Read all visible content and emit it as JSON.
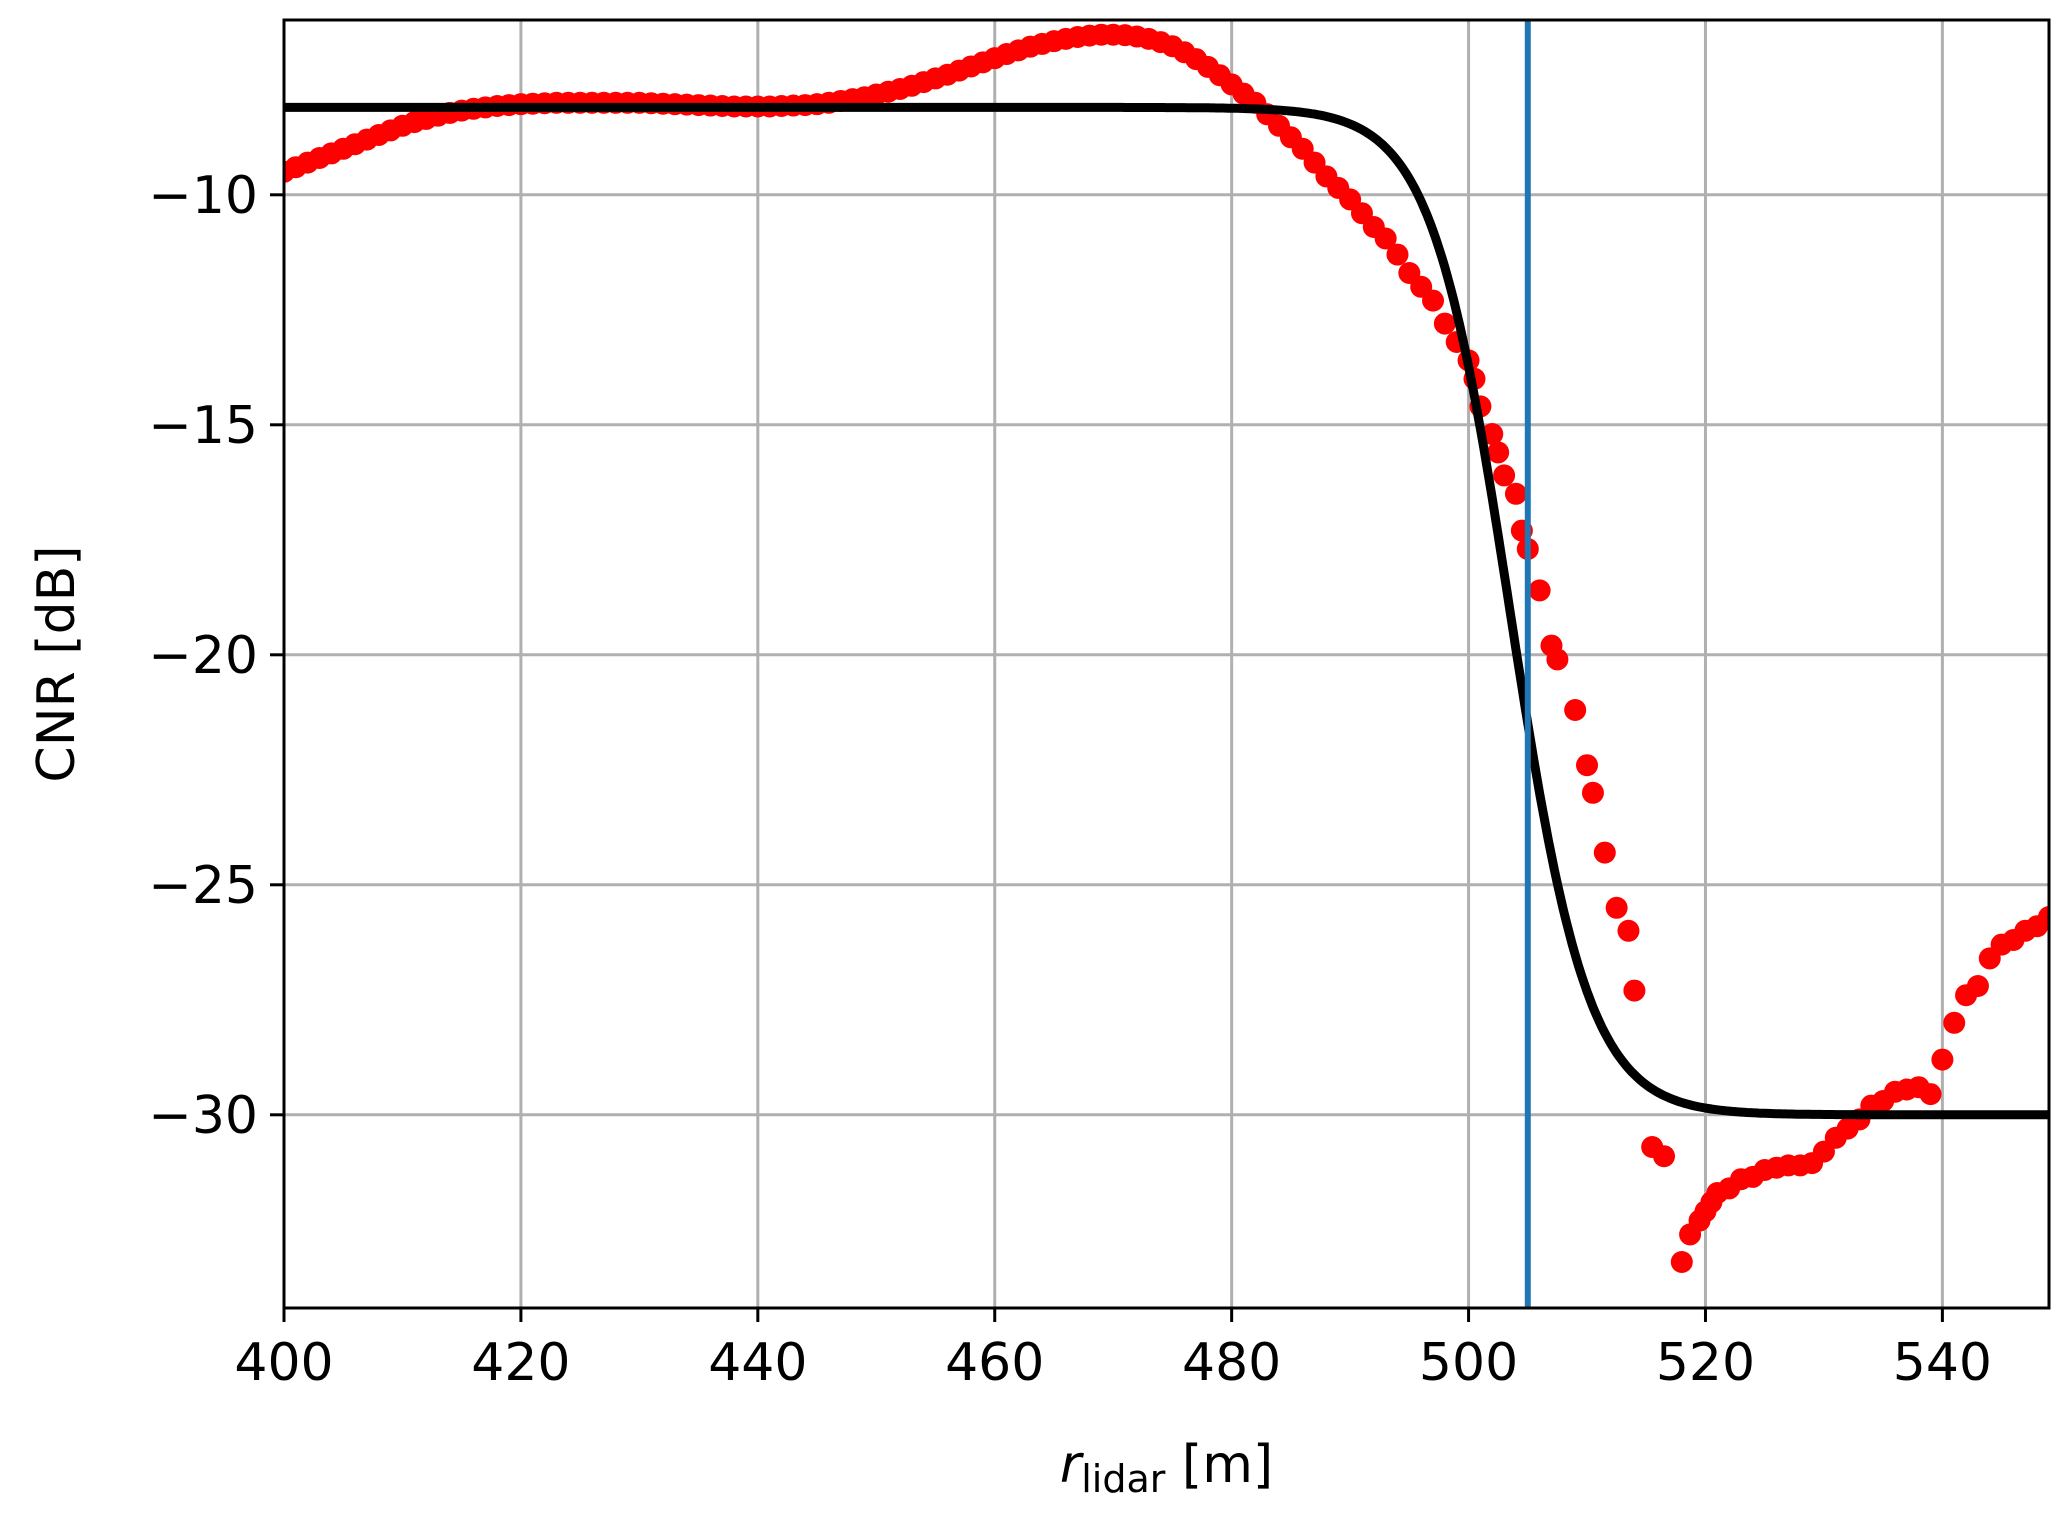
{
  "chart_data": {
    "type": "scatter",
    "xlabel": {
      "var": "r",
      "sub": "lidar",
      "unit": " [m]"
    },
    "ylabel": "CNR [dB]",
    "xlim": [
      400,
      549
    ],
    "ylim": [
      -34.2,
      -6.2
    ],
    "xticks": [
      400,
      420,
      440,
      460,
      480,
      500,
      520,
      540
    ],
    "yticks": [
      -10,
      -15,
      -20,
      -25,
      -30
    ],
    "xtick_labels": [
      "400",
      "420",
      "440",
      "460",
      "480",
      "500",
      "520",
      "540"
    ],
    "ytick_labels": [
      "−10",
      "−15",
      "−20",
      "−25",
      "−30"
    ],
    "grid": true,
    "colors": {
      "points": "#ff0000",
      "fit": "#000000",
      "vline": "#1f77b4",
      "grid": "#b0b0b0"
    },
    "vline_x": 505,
    "fit": {
      "high": -8.1,
      "low": -30.0,
      "center": 503.5,
      "width": 3.3
    },
    "series": [
      {
        "marker": "circle",
        "points": [
          [
            400,
            -9.5
          ],
          [
            401,
            -9.4
          ],
          [
            402,
            -9.3
          ],
          [
            403,
            -9.2
          ],
          [
            404,
            -9.1
          ],
          [
            405,
            -9.0
          ],
          [
            406,
            -8.9
          ],
          [
            407,
            -8.8
          ],
          [
            408,
            -8.7
          ],
          [
            409,
            -8.6
          ],
          [
            410,
            -8.5
          ],
          [
            411,
            -8.42
          ],
          [
            412,
            -8.35
          ],
          [
            413,
            -8.28
          ],
          [
            414,
            -8.22
          ],
          [
            415,
            -8.17
          ],
          [
            416,
            -8.13
          ],
          [
            417,
            -8.1
          ],
          [
            418,
            -8.07
          ],
          [
            419,
            -8.05
          ],
          [
            420,
            -8.03
          ],
          [
            421,
            -8.02
          ],
          [
            422,
            -8.01
          ],
          [
            423,
            -8.0
          ],
          [
            424,
            -8.0
          ],
          [
            425,
            -8.0
          ],
          [
            426,
            -8.0
          ],
          [
            427,
            -8.0
          ],
          [
            428,
            -8.0
          ],
          [
            429,
            -8.0
          ],
          [
            430,
            -8.0
          ],
          [
            431,
            -8.01
          ],
          [
            432,
            -8.02
          ],
          [
            433,
            -8.03
          ],
          [
            434,
            -8.04
          ],
          [
            435,
            -8.05
          ],
          [
            436,
            -8.06
          ],
          [
            437,
            -8.07
          ],
          [
            438,
            -8.08
          ],
          [
            439,
            -8.08
          ],
          [
            440,
            -8.08
          ],
          [
            441,
            -8.08
          ],
          [
            442,
            -8.07
          ],
          [
            443,
            -8.06
          ],
          [
            444,
            -8.05
          ],
          [
            445,
            -8.03
          ],
          [
            446,
            -8.0
          ],
          [
            447,
            -7.96
          ],
          [
            448,
            -7.92
          ],
          [
            449,
            -7.88
          ],
          [
            450,
            -7.82
          ],
          [
            451,
            -7.76
          ],
          [
            452,
            -7.7
          ],
          [
            453,
            -7.63
          ],
          [
            454,
            -7.55
          ],
          [
            455,
            -7.47
          ],
          [
            456,
            -7.39
          ],
          [
            457,
            -7.3
          ],
          [
            458,
            -7.21
          ],
          [
            459,
            -7.12
          ],
          [
            460,
            -7.03
          ],
          [
            461,
            -6.94
          ],
          [
            462,
            -6.86
          ],
          [
            463,
            -6.78
          ],
          [
            464,
            -6.72
          ],
          [
            465,
            -6.66
          ],
          [
            466,
            -6.61
          ],
          [
            467,
            -6.57
          ],
          [
            468,
            -6.54
          ],
          [
            469,
            -6.52
          ],
          [
            470,
            -6.52
          ],
          [
            471,
            -6.53
          ],
          [
            472,
            -6.56
          ],
          [
            473,
            -6.61
          ],
          [
            474,
            -6.68
          ],
          [
            475,
            -6.77
          ],
          [
            476,
            -6.9
          ],
          [
            477,
            -7.05
          ],
          [
            478,
            -7.22
          ],
          [
            479,
            -7.4
          ],
          [
            480,
            -7.6
          ],
          [
            481,
            -7.8
          ],
          [
            482,
            -8.0
          ],
          [
            483,
            -8.25
          ],
          [
            484,
            -8.5
          ],
          [
            485,
            -8.75
          ],
          [
            486,
            -9.0
          ],
          [
            487,
            -9.3
          ],
          [
            488,
            -9.6
          ],
          [
            489,
            -9.85
          ],
          [
            490,
            -10.1
          ],
          [
            491,
            -10.4
          ],
          [
            492,
            -10.7
          ],
          [
            493,
            -10.95
          ],
          [
            494,
            -11.3
          ],
          [
            495,
            -11.7
          ],
          [
            496,
            -12.0
          ],
          [
            497,
            -12.3
          ],
          [
            498,
            -12.8
          ],
          [
            499,
            -13.2
          ],
          [
            500,
            -13.6
          ],
          [
            500.5,
            -14.0
          ],
          [
            501,
            -14.6
          ],
          [
            502,
            -15.2
          ],
          [
            502.5,
            -15.6
          ],
          [
            503,
            -16.1
          ],
          [
            504,
            -16.5
          ],
          [
            504.5,
            -17.3
          ],
          [
            505,
            -17.7
          ],
          [
            506,
            -18.6
          ],
          [
            507,
            -19.8
          ],
          [
            507.5,
            -20.1
          ],
          [
            509,
            -21.2
          ],
          [
            510,
            -22.4
          ],
          [
            510.5,
            -23.0
          ],
          [
            511.5,
            -24.3
          ],
          [
            512.5,
            -25.5
          ],
          [
            513.5,
            -26.0
          ],
          [
            514,
            -27.3
          ],
          [
            515.5,
            -30.7
          ],
          [
            516.5,
            -30.9
          ],
          [
            518,
            -33.2
          ],
          [
            518.7,
            -32.6
          ],
          [
            519.5,
            -32.3
          ],
          [
            520,
            -32.1
          ],
          [
            520.5,
            -31.9
          ],
          [
            521,
            -31.7
          ],
          [
            522,
            -31.6
          ],
          [
            523,
            -31.4
          ],
          [
            524,
            -31.35
          ],
          [
            525,
            -31.2
          ],
          [
            526,
            -31.15
          ],
          [
            527,
            -31.1
          ],
          [
            528,
            -31.1
          ],
          [
            529,
            -31.05
          ],
          [
            530,
            -30.8
          ],
          [
            531,
            -30.5
          ],
          [
            532,
            -30.3
          ],
          [
            533,
            -30.1
          ],
          [
            534,
            -29.8
          ],
          [
            535,
            -29.7
          ],
          [
            536,
            -29.5
          ],
          [
            537,
            -29.45
          ],
          [
            538,
            -29.4
          ],
          [
            539,
            -29.55
          ],
          [
            540,
            -28.8
          ],
          [
            541,
            -28.0
          ],
          [
            542,
            -27.4
          ],
          [
            543,
            -27.2
          ],
          [
            544,
            -26.6
          ],
          [
            545,
            -26.3
          ],
          [
            546,
            -26.2
          ],
          [
            547,
            -26.0
          ],
          [
            548,
            -25.9
          ],
          [
            549,
            -25.7
          ]
        ]
      }
    ]
  }
}
